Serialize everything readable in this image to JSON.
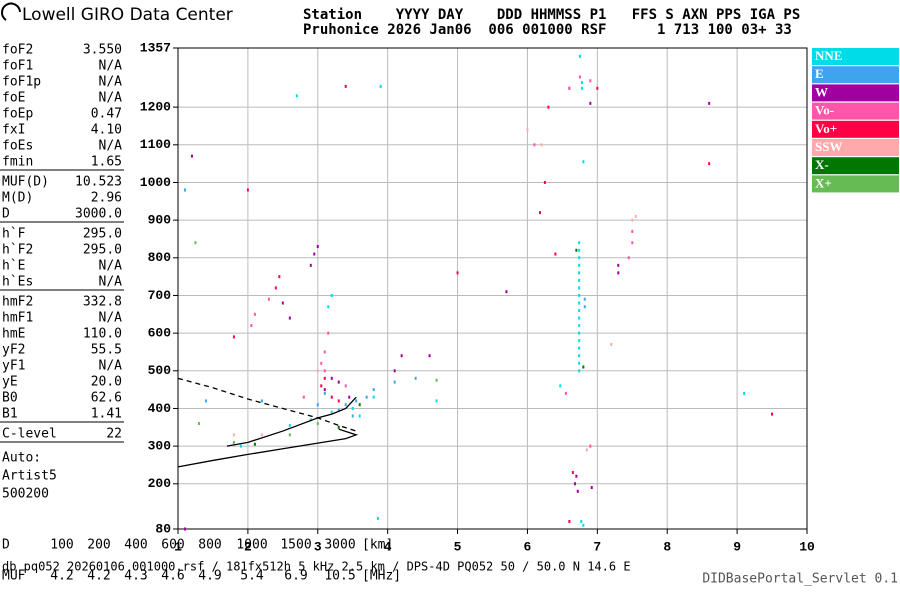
{
  "header": {
    "brand": "Lowell GIRO Data Center",
    "line1": "Station    YYYY DAY    DDD HHMMSS P1   FFS S AXN PPS IGA PS",
    "line2": "Pruhonice 2026 Jan06  006 001000 RSF      1 713 100 03+ 33"
  },
  "parameters": [
    [
      [
        "foF2",
        "3.550"
      ],
      [
        "foF1",
        "N/A"
      ],
      [
        "foF1p",
        "N/A"
      ],
      [
        "foE",
        "N/A"
      ],
      [
        "foEp",
        "0.47"
      ],
      [
        "fxI",
        "4.10"
      ],
      [
        "foEs",
        "N/A"
      ],
      [
        "fmin",
        "1.65"
      ]
    ],
    [
      [
        "MUF(D)",
        "10.523"
      ],
      [
        "M(D)",
        "2.96"
      ],
      [
        "D",
        "3000.0"
      ]
    ],
    [
      [
        "h`F",
        "295.0"
      ],
      [
        "h`F2",
        "295.0"
      ],
      [
        "h`E",
        "N/A"
      ],
      [
        "h`Es",
        "N/A"
      ]
    ],
    [
      [
        "hmF2",
        "332.8"
      ],
      [
        "hmF1",
        "N/A"
      ],
      [
        "hmE",
        "110.0"
      ],
      [
        "yF2",
        "55.5"
      ],
      [
        "yF1",
        "N/A"
      ],
      [
        "yE",
        "20.0"
      ],
      [
        "B0",
        "62.6"
      ],
      [
        "B1",
        "1.41"
      ]
    ],
    [
      [
        "C-level",
        "22"
      ]
    ]
  ],
  "auto": [
    "Auto:",
    "Artist5",
    "500200"
  ],
  "muf_table": {
    "d_label": "D",
    "d_values": [
      "100",
      "200",
      "400",
      "600",
      "800",
      "1000",
      "1500",
      "3000"
    ],
    "d_unit": "[km]",
    "muf_label": "MUF",
    "muf_values": [
      "4.2",
      "4.2",
      "4.3",
      "4.6",
      "4.9",
      "5.4",
      "6.9",
      "10.5"
    ],
    "muf_unit": "[MHz]"
  },
  "footer": {
    "left": "db pq052 20260106 001000.rsf / 181fx512h 5 kHz 2.5 km / DPS-4D PQ052 50 / 50.0 N 14.6 E",
    "right": "DIDBasePortal_Servlet 0.1"
  },
  "chart_data": {
    "type": "scatter",
    "xlim": [
      1,
      10
    ],
    "xticks": [
      1,
      2,
      3,
      4,
      5,
      6,
      7,
      8,
      9,
      10
    ],
    "ylim": [
      80,
      1357
    ],
    "yticks": [
      80,
      200,
      300,
      400,
      500,
      600,
      700,
      800,
      900,
      1000,
      1100,
      1200,
      1357
    ],
    "grid": true,
    "series": [
      {
        "name": "NNE",
        "color": "#00dde8",
        "x": [
          6.74,
          6.74,
          6.74,
          6.74,
          6.74,
          6.74,
          6.74,
          6.74,
          6.74,
          6.74,
          6.74,
          6.74,
          6.74,
          6.74,
          6.74,
          6.74,
          6.74,
          6.74,
          6.78,
          6.78,
          6.75,
          6.8,
          3.86,
          6.8,
          6.77,
          3.6,
          3.5,
          3.2,
          2.9,
          2.6,
          1.9,
          3.8,
          4.7,
          2.7,
          3.9,
          9.1,
          6.47,
          3.2,
          3.15
        ],
        "y": [
          500,
          520,
          540,
          560,
          580,
          600,
          620,
          640,
          660,
          680,
          700,
          720,
          740,
          760,
          780,
          800,
          820,
          840,
          1250,
          1265,
          1335,
          1055,
          108,
          90,
          100,
          380,
          400,
          390,
          370,
          355,
          300,
          430,
          420,
          1230,
          1255,
          440,
          460,
          700,
          670
        ]
      },
      {
        "name": "E",
        "color": "#3fa4ee",
        "x": [
          3.3,
          3.4,
          3.5,
          3.55,
          3.7,
          3.8,
          4.1,
          4.4,
          6.82,
          6.82,
          2.2,
          1.4,
          3.0,
          3.1,
          1.1
        ],
        "y": [
          395,
          410,
          380,
          420,
          430,
          450,
          470,
          480,
          690,
          670,
          420,
          420,
          410,
          440,
          980
        ]
      },
      {
        "name": "W",
        "color": "#a000a0",
        "x": [
          2.9,
          2.95,
          3.0,
          2.5,
          2.6,
          3.1,
          3.2,
          3.3,
          3.45,
          7.3,
          7.3,
          6.68,
          6.7,
          6.72,
          6.92,
          4.1,
          4.2,
          4.6,
          5.7,
          1.2,
          6.9,
          8.6,
          1.1,
          6.6
        ],
        "y": [
          780,
          810,
          830,
          680,
          640,
          450,
          480,
          470,
          430,
          780,
          760,
          200,
          220,
          180,
          190,
          500,
          540,
          540,
          710,
          1070,
          1210,
          1210,
          80,
          1250
        ]
      },
      {
        "name": "Vo-",
        "color": "#ff55aa",
        "x": [
          3.05,
          3.1,
          3.1,
          2.1,
          2.05,
          2.3,
          3.15,
          7.5,
          7.5,
          7.45,
          2.8,
          3.4,
          6.6,
          6.9,
          6.75,
          6.55,
          6.1,
          6.9
        ],
        "y": [
          520,
          550,
          500,
          650,
          620,
          690,
          600,
          870,
          840,
          800,
          430,
          460,
          1250,
          1270,
          1280,
          440,
          1100,
          300
        ]
      },
      {
        "name": "Vo+",
        "color": "#ff0044",
        "x": [
          3.1,
          3.05,
          2.4,
          2.45,
          5.0,
          6.3,
          6.25,
          6.4,
          1.8,
          3.2,
          3.3,
          2.0,
          7.0,
          6.65,
          6.6,
          8.6,
          9.5,
          3.4,
          6.18
        ],
        "y": [
          480,
          460,
          720,
          750,
          760,
          1200,
          1000,
          810,
          590,
          430,
          420,
          980,
          1250,
          230,
          100,
          1050,
          385,
          1255,
          920
        ]
      },
      {
        "name": "SSW",
        "color": "#ffaaaa",
        "x": [
          7.5,
          7.55,
          6.2,
          6.0,
          2.2,
          1.8,
          7.2,
          6.85,
          3.0
        ],
        "y": [
          900,
          910,
          1100,
          1140,
          330,
          330,
          570,
          290,
          500
        ]
      },
      {
        "name": "X-",
        "color": "#007700",
        "x": [
          3.3,
          2.1,
          3.6,
          6.7,
          6.8
        ],
        "y": [
          350,
          305,
          410,
          820,
          510
        ]
      },
      {
        "name": "X+",
        "color": "#66bb55",
        "x": [
          1.8,
          1.25,
          1.3,
          4.7,
          3.0,
          2.6
        ],
        "y": [
          310,
          840,
          360,
          475,
          360,
          330
        ]
      }
    ],
    "traces": [
      {
        "style": "solid",
        "x": [
          1,
          1.5,
          2,
          2.5,
          3,
          3.4,
          3.55,
          3.3
        ],
        "y": [
          245,
          262,
          278,
          293,
          308,
          320,
          330,
          345
        ]
      },
      {
        "style": "dashed",
        "x": [
          1,
          1.5,
          2,
          2.5,
          3,
          3.3,
          3.55
        ],
        "y": [
          480,
          455,
          425,
          400,
          375,
          355,
          340
        ]
      },
      {
        "style": "solid",
        "x": [
          1.7,
          2,
          2.5,
          3,
          3.2,
          3.4,
          3.55
        ],
        "y": [
          300,
          310,
          340,
          375,
          385,
          400,
          430
        ]
      }
    ]
  }
}
